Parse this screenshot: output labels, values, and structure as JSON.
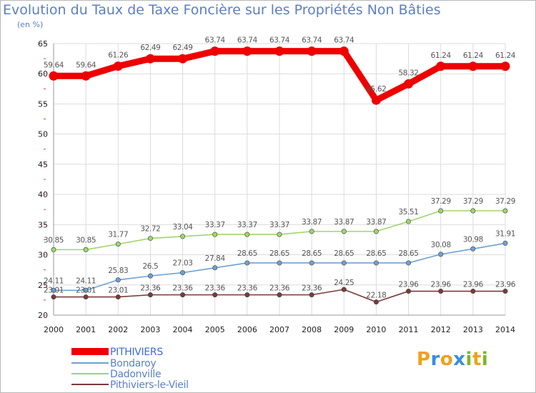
{
  "header": {
    "title": "Evolution du Taux de Taxe Foncière sur les Propriétés Non Bâties",
    "subtitle": "(en %)"
  },
  "logo": {
    "text": "Proxiti",
    "letters": [
      "P",
      "r",
      "o",
      "x",
      "i",
      "t",
      "i"
    ],
    "colors": [
      "#f0a020",
      "#3a8ede",
      "#f0a020",
      "#3a8ede",
      "#79b929",
      "#f0a020",
      "#79b929"
    ]
  },
  "chart_data": {
    "type": "line",
    "title": "Evolution du Taux de Taxe Foncière sur les Propriétés Non Bâties",
    "ylabel": "(en %)",
    "xlabel": "",
    "x": [
      2000,
      2001,
      2002,
      2003,
      2004,
      2005,
      2006,
      2007,
      2008,
      2009,
      2010,
      2011,
      2012,
      2013,
      2014
    ],
    "ylim": [
      20,
      65
    ],
    "yticks": [
      20,
      25,
      30,
      35,
      40,
      45,
      50,
      55,
      60,
      65
    ],
    "grid": true,
    "legend_position": "bottom-left",
    "series": [
      {
        "name": "PITHIVIERS",
        "color": "#ee0000",
        "values": [
          59.64,
          59.64,
          61.26,
          62.49,
          62.49,
          63.74,
          63.74,
          63.74,
          63.74,
          63.74,
          55.62,
          58.32,
          61.24,
          61.24,
          61.24
        ],
        "labels": [
          "59.64",
          "59.64",
          "61.26",
          "62.49",
          "62.49",
          "63.74",
          "63.74",
          "63.74",
          "63.74",
          "63.74",
          "55.62",
          "58.32",
          "61.24",
          "61.24",
          "61.24"
        ]
      },
      {
        "name": "Bondaroy",
        "color": "#6fa0cf",
        "values": [
          24.11,
          24.11,
          25.83,
          26.5,
          27.03,
          27.84,
          28.65,
          28.65,
          28.65,
          28.65,
          28.65,
          28.65,
          30.08,
          30.98,
          31.91
        ],
        "labels": [
          "24.11",
          "24.11",
          "25.83",
          "26.5",
          "27.03",
          "27.84",
          "28.65",
          "28.65",
          "28.65",
          "28.65",
          "28.65",
          "28.65",
          "30.08",
          "30.98",
          "31.91"
        ]
      },
      {
        "name": "Dadonville",
        "color": "#9fd56a",
        "values": [
          30.85,
          30.85,
          31.77,
          32.72,
          33.04,
          33.37,
          33.37,
          33.37,
          33.87,
          33.87,
          33.87,
          35.51,
          37.29,
          37.29,
          37.29
        ],
        "labels": [
          "30.85",
          "30.85",
          "31.77",
          "32.72",
          "33.04",
          "33.37",
          "33.37",
          "33.37",
          "33.87",
          "33.87",
          "33.87",
          "35.51",
          "37.29",
          "37.29",
          "37.29"
        ]
      },
      {
        "name": "Pithiviers-le-Vieil",
        "color": "#7a3a3a",
        "values": [
          23.01,
          23.01,
          23.01,
          23.36,
          23.36,
          23.36,
          23.36,
          23.36,
          23.36,
          24.25,
          22.18,
          23.96,
          23.96,
          23.96,
          23.96
        ],
        "labels": [
          "23.01",
          "23.01",
          "23.01",
          "23.36",
          "23.36",
          "23.36",
          "23.36",
          "23.36",
          "23.36",
          "24.25",
          "22.18",
          "23.96",
          "23.96",
          "23.96",
          "23.96"
        ]
      }
    ]
  }
}
